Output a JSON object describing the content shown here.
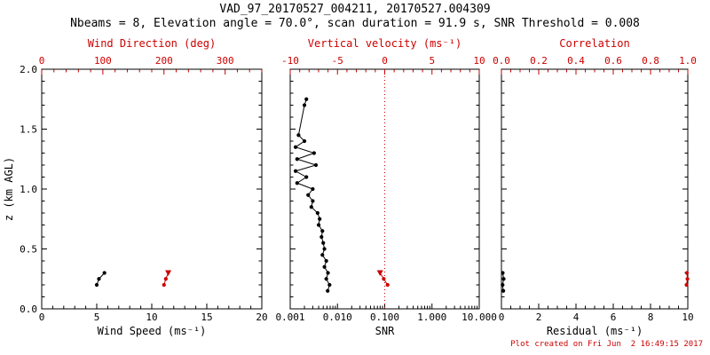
{
  "title": "VAD_97_20170527_004211, 20170527.004309",
  "subtitle": "Nbeams = 8, Elevation angle = 70.0°, scan duration = 91.9 s, SNR Threshold = 0.008",
  "footer": "Plot created on Fri Jun  2 16:49:15 2017",
  "colors": {
    "axis_black": "#000000",
    "accent_red": "#cc0000",
    "background": "#ffffff"
  },
  "yaxis": {
    "label": "z (km AGL)",
    "min": 0,
    "max": 2,
    "minor_divisions": 5,
    "ticks": {
      "values": [
        0,
        0.5,
        1,
        1.5,
        2
      ],
      "labels": [
        "0.0",
        "0.5",
        "1.0",
        "1.5",
        "2.0"
      ]
    }
  },
  "chart_data": [
    {
      "type": "scatter",
      "xlabel": "Wind Speed (ms⁻¹)",
      "xaxis": {
        "scale": "linear",
        "min": 0,
        "max": 20,
        "minor_divisions": 5,
        "ticks": {
          "values": [
            0,
            5,
            10,
            15,
            20
          ],
          "labels": [
            "0",
            "5",
            "10",
            "15",
            "20"
          ]
        }
      },
      "top_axis": {
        "label": "Wind Direction (deg)",
        "scale": "linear",
        "min": 0,
        "max": 360,
        "minor_divisions": 5,
        "ticks": {
          "values": [
            0,
            100,
            200,
            300
          ],
          "labels": [
            "0",
            "100",
            "200",
            "300"
          ]
        }
      },
      "series": [
        {
          "name": "wind-speed-profile",
          "color": "black",
          "axis": "bottom",
          "points": [
            [
              5.0,
              0.2
            ],
            [
              5.2,
              0.25
            ],
            [
              5.7,
              0.3
            ]
          ]
        },
        {
          "name": "wind-direction-profile",
          "color": "red",
          "axis": "top",
          "cap_marker": "triangle-down",
          "points": [
            [
              200,
              0.2
            ],
            [
              203,
              0.25
            ],
            [
              207,
              0.3
            ]
          ]
        }
      ]
    },
    {
      "type": "scatter",
      "xlabel": "SNR",
      "xaxis": {
        "scale": "log",
        "min": 0.001,
        "max": 10,
        "ticks": {
          "values": [
            0.001,
            0.01,
            0.1,
            1,
            10
          ],
          "labels": [
            "0.001",
            "0.010",
            "0.100",
            "1.000",
            "10.000"
          ]
        }
      },
      "top_axis": {
        "label": "Vertical velocity (ms⁻¹)",
        "scale": "linear",
        "min": -10,
        "max": 10,
        "minor_divisions": 5,
        "ticks": {
          "values": [
            -10,
            -5,
            0,
            5,
            10
          ],
          "labels": [
            "-10",
            "-5",
            "0",
            "5",
            "10"
          ]
        }
      },
      "ref_line_top": 0,
      "series": [
        {
          "name": "snr-profile",
          "color": "black",
          "axis": "bottom",
          "points": [
            [
              0.0062,
              0.15
            ],
            [
              0.0068,
              0.2
            ],
            [
              0.0058,
              0.25
            ],
            [
              0.0063,
              0.3
            ],
            [
              0.0053,
              0.35
            ],
            [
              0.0058,
              0.4
            ],
            [
              0.0048,
              0.45
            ],
            [
              0.0053,
              0.5
            ],
            [
              0.005,
              0.55
            ],
            [
              0.0046,
              0.6
            ],
            [
              0.0048,
              0.65
            ],
            [
              0.004,
              0.7
            ],
            [
              0.0042,
              0.75
            ],
            [
              0.0038,
              0.8
            ],
            [
              0.0028,
              0.85
            ],
            [
              0.003,
              0.9
            ],
            [
              0.0024,
              0.95
            ],
            [
              0.003,
              1.0
            ],
            [
              0.0014,
              1.05
            ],
            [
              0.0022,
              1.1
            ],
            [
              0.0013,
              1.15
            ],
            [
              0.0035,
              1.2
            ],
            [
              0.0014,
              1.25
            ],
            [
              0.0032,
              1.3
            ],
            [
              0.0013,
              1.35
            ],
            [
              0.002,
              1.4
            ],
            [
              0.0015,
              1.45
            ],
            [
              0.002,
              1.7
            ],
            [
              0.0022,
              1.75
            ]
          ]
        },
        {
          "name": "vertical-velocity-profile",
          "color": "red",
          "axis": "top",
          "cap_marker": "triangle-down",
          "points": [
            [
              0.3,
              0.2
            ],
            [
              -0.1,
              0.25
            ],
            [
              -0.5,
              0.3
            ]
          ]
        }
      ]
    },
    {
      "type": "scatter",
      "xlabel": "Residual (ms⁻¹)",
      "xaxis": {
        "scale": "linear",
        "min": 0,
        "max": 10,
        "minor_divisions": 4,
        "ticks": {
          "values": [
            0,
            2,
            4,
            6,
            8,
            10
          ],
          "labels": [
            "0",
            "2",
            "4",
            "6",
            "8",
            "10"
          ]
        }
      },
      "top_axis": {
        "label": "Correlation",
        "scale": "linear",
        "min": 0,
        "max": 1,
        "minor_divisions": 4,
        "ticks": {
          "values": [
            0,
            0.2,
            0.4,
            0.6,
            0.8,
            1.0
          ],
          "labels": [
            "0.0",
            "0.2",
            "0.4",
            "0.6",
            "0.8",
            "1.0"
          ]
        }
      },
      "series": [
        {
          "name": "residual-profile",
          "color": "black",
          "axis": "bottom",
          "points": [
            [
              0.1,
              0.15
            ],
            [
              0.06,
              0.2
            ],
            [
              0.12,
              0.25
            ],
            [
              0.07,
              0.3
            ]
          ]
        },
        {
          "name": "correlation-profile",
          "color": "red",
          "axis": "top",
          "points": [
            [
              0.993,
              0.2
            ],
            [
              0.998,
              0.25
            ],
            [
              0.995,
              0.3
            ]
          ]
        }
      ]
    }
  ]
}
